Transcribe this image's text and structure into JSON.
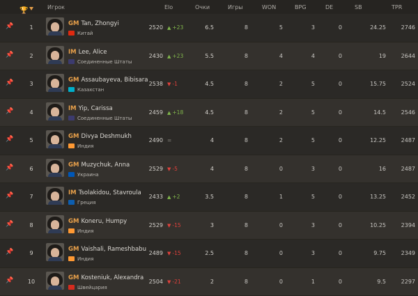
{
  "header": {
    "player": "Игрок",
    "elo": "Elo",
    "points": "Очки",
    "games": "Игры",
    "won": "WON",
    "bpg": "BPG",
    "de": "DE",
    "sb": "SB",
    "tpr": "TPR",
    "sort_icon": "trophy-icon",
    "sort_caret_color": "#e8a04a"
  },
  "colors": {
    "title": "#e8a04a",
    "positive": "#81b64c",
    "negative": "#e0413c"
  },
  "players": [
    {
      "rank": "1",
      "title": "GM",
      "name": "Tan, Zhongyi",
      "country": "Китай",
      "flag": "#de2910",
      "elo": "2520",
      "change": "+23",
      "dir": "up",
      "points": "6.5",
      "games": "8",
      "won": "5",
      "bpg": "3",
      "de": "0",
      "sb": "24.25",
      "tpr": "2746"
    },
    {
      "rank": "2",
      "title": "IM",
      "name": "Lee, Alice",
      "country": "Соединенные Штаты",
      "flag": "#3c3b6e",
      "elo": "2430",
      "change": "+23",
      "dir": "up",
      "points": "5.5",
      "games": "8",
      "won": "4",
      "bpg": "4",
      "de": "0",
      "sb": "19",
      "tpr": "2644"
    },
    {
      "rank": "3",
      "title": "GM",
      "name": "Assaubayeva, Bibisara",
      "country": "Казахстан",
      "flag": "#00afca",
      "elo": "2538",
      "change": "-1",
      "dir": "down",
      "points": "4.5",
      "games": "8",
      "won": "2",
      "bpg": "5",
      "de": "0",
      "sb": "15.75",
      "tpr": "2524"
    },
    {
      "rank": "4",
      "title": "IM",
      "name": "Yip, Carissa",
      "country": "Соединенные Штаты",
      "flag": "#3c3b6e",
      "elo": "2459",
      "change": "+18",
      "dir": "up",
      "points": "4.5",
      "games": "8",
      "won": "2",
      "bpg": "5",
      "de": "0",
      "sb": "14.5",
      "tpr": "2546"
    },
    {
      "rank": "5",
      "title": "GM",
      "name": "Divya Deshmukh",
      "country": "Индия",
      "flag": "#ff9933",
      "elo": "2490",
      "change": "=",
      "dir": "eq",
      "points": "4",
      "games": "8",
      "won": "2",
      "bpg": "5",
      "de": "0",
      "sb": "12.25",
      "tpr": "2487"
    },
    {
      "rank": "6",
      "title": "GM",
      "name": "Muzychuk, Anna",
      "country": "Украина",
      "flag": "#0057b7",
      "elo": "2529",
      "change": "-5",
      "dir": "down",
      "points": "4",
      "games": "8",
      "won": "0",
      "bpg": "3",
      "de": "0",
      "sb": "16",
      "tpr": "2487"
    },
    {
      "rank": "7",
      "title": "IM",
      "name": "Tsolakidou, Stavroula",
      "country": "Греция",
      "flag": "#0d5eaf",
      "elo": "2433",
      "change": "+2",
      "dir": "up",
      "points": "3.5",
      "games": "8",
      "won": "1",
      "bpg": "5",
      "de": "0",
      "sb": "13.25",
      "tpr": "2452"
    },
    {
      "rank": "8",
      "title": "GM",
      "name": "Koneru, Humpy",
      "country": "Индия",
      "flag": "#ff9933",
      "elo": "2529",
      "change": "-15",
      "dir": "down",
      "points": "3",
      "games": "8",
      "won": "0",
      "bpg": "3",
      "de": "0",
      "sb": "10.25",
      "tpr": "2394"
    },
    {
      "rank": "9",
      "title": "GM",
      "name": "Vaishali, Rameshbabu",
      "country": "Индия",
      "flag": "#ff9933",
      "elo": "2489",
      "change": "-15",
      "dir": "down",
      "points": "2.5",
      "games": "8",
      "won": "0",
      "bpg": "3",
      "de": "0",
      "sb": "9.75",
      "tpr": "2349"
    },
    {
      "rank": "10",
      "title": "GM",
      "name": "Kosteniuk, Alexandra",
      "country": "Швейцария",
      "flag": "#d52b1e",
      "elo": "2504",
      "change": "-21",
      "dir": "down",
      "points": "2",
      "games": "8",
      "won": "0",
      "bpg": "1",
      "de": "0",
      "sb": "9.5",
      "tpr": "2297"
    }
  ]
}
